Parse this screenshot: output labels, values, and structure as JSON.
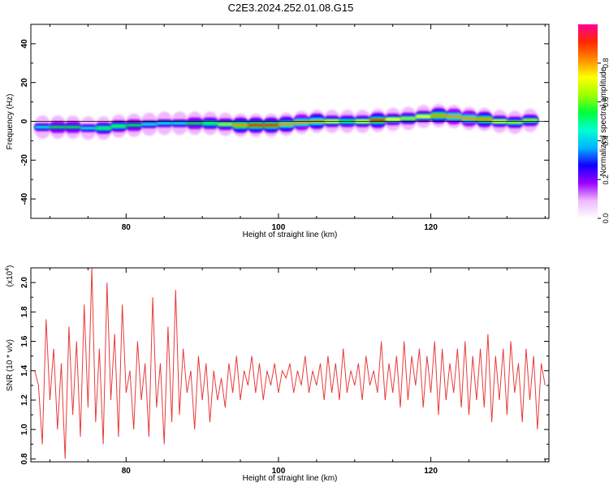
{
  "title": "C2E3.2024.252.01.08.G15",
  "chart_data": [
    {
      "type": "heatmap",
      "xlabel": "Height of straight line (km)",
      "ylabel": "Frequency (Hz)",
      "xlim": [
        67.5,
        135.5
      ],
      "ylim": [
        -50,
        50
      ],
      "xticks": [
        80,
        100,
        120
      ],
      "yticks": [
        -40,
        -20,
        0,
        20,
        40
      ],
      "colorbar": {
        "label": "Normalized spectral amplitude",
        "range": [
          0,
          1
        ],
        "ticks": [
          "0.0",
          "0.2",
          "0.4",
          "0.6",
          "0.8"
        ],
        "colors": [
          "#ffffff",
          "#f0b8ff",
          "#9a00ff",
          "#1400ff",
          "#00b4ff",
          "#00ffd2",
          "#00ff3c",
          "#a0ff00",
          "#ffff00",
          "#ff8c00",
          "#ff2800",
          "#ff0096"
        ]
      },
      "ridge": {
        "x": [
          68,
          70,
          72,
          74,
          76,
          78,
          80,
          82,
          84,
          86,
          88,
          90,
          92,
          94,
          96,
          98,
          100,
          102,
          104,
          106,
          108,
          110,
          112,
          114,
          116,
          118,
          120,
          122,
          124,
          126,
          128,
          130,
          132,
          134
        ],
        "frequency_hz": [
          -3,
          -3,
          -3,
          -3,
          -4,
          -3,
          -2,
          -2,
          -1,
          -1,
          -1,
          -1,
          -1,
          -2,
          -2,
          -2,
          -2,
          -1,
          0,
          0,
          0,
          0,
          0,
          1,
          1,
          2,
          3,
          3,
          2,
          1,
          1,
          -1,
          0,
          1
        ],
        "amplitude": [
          0.45,
          0.5,
          0.55,
          0.45,
          0.5,
          0.6,
          0.55,
          0.5,
          0.45,
          0.45,
          0.5,
          0.55,
          0.6,
          0.75,
          0.95,
          0.95,
          0.95,
          0.7,
          0.85,
          0.8,
          0.6,
          0.55,
          0.85,
          0.9,
          0.6,
          0.7,
          0.8,
          0.9,
          0.7,
          0.85,
          0.85,
          0.6,
          0.65,
          0.7
        ]
      }
    },
    {
      "type": "line",
      "xlabel": "Height of straight line (km)",
      "ylabel": "SNR (10 * v/v)",
      "exponent_label": "(x10",
      "exponent_power": "4",
      "exponent_close": ")",
      "xlim": [
        67.5,
        135.5
      ],
      "ylim": [
        0.78,
        2.1
      ],
      "xticks": [
        80,
        100,
        120
      ],
      "yticks": [
        "0.8",
        "1.0",
        "1.2",
        "1.4",
        "1.6",
        "1.8",
        "2.0"
      ],
      "series": [
        {
          "color": "#e83a3a",
          "x": [
            68.0,
            68.5,
            69.0,
            69.5,
            70.0,
            70.5,
            71.0,
            71.5,
            72.0,
            72.5,
            73.0,
            73.5,
            74.0,
            74.5,
            75.0,
            75.5,
            76.0,
            76.5,
            77.0,
            77.5,
            78.0,
            78.5,
            79.0,
            79.5,
            80.0,
            80.5,
            81.0,
            81.5,
            82.0,
            82.5,
            83.0,
            83.5,
            84.0,
            84.5,
            85.0,
            85.5,
            86.0,
            86.5,
            87.0,
            87.5,
            88.0,
            88.5,
            89.0,
            89.5,
            90.0,
            90.5,
            91.0,
            91.5,
            92.0,
            92.5,
            93.0,
            93.5,
            94.0,
            94.5,
            95.0,
            95.5,
            96.0,
            96.5,
            97.0,
            97.5,
            98.0,
            98.5,
            99.0,
            99.5,
            100.0,
            100.5,
            101.0,
            101.5,
            102.0,
            102.5,
            103.0,
            103.5,
            104.0,
            104.5,
            105.0,
            105.5,
            106.0,
            106.5,
            107.0,
            107.5,
            108.0,
            108.5,
            109.0,
            109.5,
            110.0,
            110.5,
            111.0,
            111.5,
            112.0,
            112.5,
            113.0,
            113.5,
            114.0,
            114.5,
            115.0,
            115.5,
            116.0,
            116.5,
            117.0,
            117.5,
            118.0,
            118.5,
            119.0,
            119.5,
            120.0,
            120.5,
            121.0,
            121.5,
            122.0,
            122.5,
            123.0,
            123.5,
            124.0,
            124.5,
            125.0,
            125.5,
            126.0,
            126.5,
            127.0,
            127.5,
            128.0,
            128.5,
            129.0,
            129.5,
            130.0,
            130.5,
            131.0,
            131.5,
            132.0,
            132.5,
            133.0,
            133.5,
            134.0,
            134.5,
            135.0
          ],
          "y": [
            1.4,
            1.3,
            0.9,
            1.75,
            1.2,
            1.55,
            1.0,
            1.45,
            0.8,
            1.7,
            1.1,
            1.6,
            0.95,
            1.85,
            1.15,
            2.1,
            1.05,
            1.55,
            0.9,
            2.0,
            1.2,
            1.65,
            0.95,
            1.85,
            1.25,
            1.4,
            1.0,
            1.6,
            1.2,
            1.45,
            0.95,
            1.9,
            1.15,
            1.45,
            0.9,
            1.7,
            1.05,
            1.95,
            1.1,
            1.55,
            1.25,
            1.4,
            1.0,
            1.5,
            1.2,
            1.45,
            1.05,
            1.4,
            1.2,
            1.35,
            1.15,
            1.45,
            1.25,
            1.5,
            1.2,
            1.4,
            1.3,
            1.5,
            1.25,
            1.45,
            1.2,
            1.4,
            1.3,
            1.45,
            1.25,
            1.4,
            1.35,
            1.45,
            1.25,
            1.4,
            1.3,
            1.5,
            1.25,
            1.4,
            1.3,
            1.45,
            1.2,
            1.5,
            1.25,
            1.45,
            1.2,
            1.55,
            1.25,
            1.4,
            1.3,
            1.45,
            1.2,
            1.5,
            1.3,
            1.4,
            1.25,
            1.6,
            1.2,
            1.45,
            1.25,
            1.5,
            1.15,
            1.6,
            1.2,
            1.5,
            1.3,
            1.55,
            1.15,
            1.5,
            1.25,
            1.6,
            1.1,
            1.55,
            1.2,
            1.45,
            1.25,
            1.55,
            1.15,
            1.6,
            1.1,
            1.5,
            1.2,
            1.55,
            1.15,
            1.65,
            1.05,
            1.5,
            1.2,
            1.55,
            1.1,
            1.6,
            1.25,
            1.45,
            1.05,
            1.55,
            1.2,
            1.5,
            1.0,
            1.45,
            1.3
          ]
        }
      ]
    }
  ]
}
